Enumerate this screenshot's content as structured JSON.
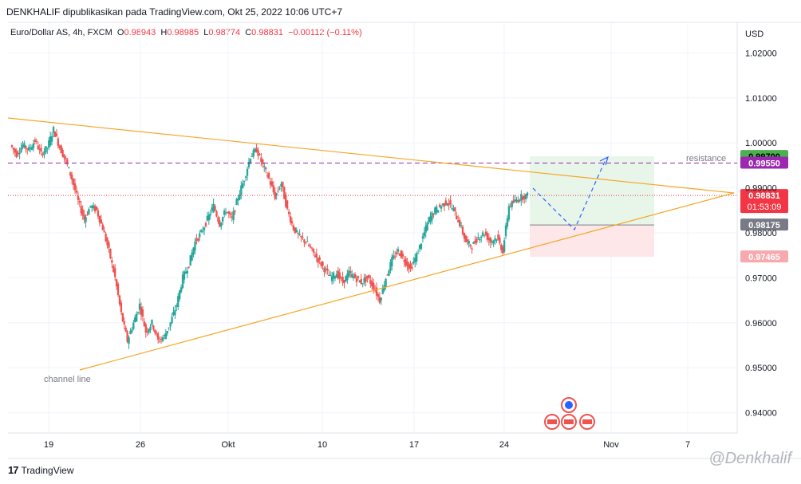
{
  "header": {
    "publisher_line": "DENKHALIF dipublikasikan pada TradingView.com, Okt 25, 2022 10:06 UTC+7"
  },
  "legend": {
    "symbol": "Euro/Dollar AS, 4h, FXCM",
    "o_key": "O",
    "o_val": "0.98943",
    "h_key": "H",
    "h_val": "0.98985",
    "l_key": "L",
    "l_val": "0.98774",
    "c_key": "C",
    "c_val": "0.98831",
    "change": "−0.00112 (−0.11%)"
  },
  "footer": {
    "brand": "TradingView",
    "logo_text": "17"
  },
  "watermark": "@Denkhalif",
  "colors": {
    "up": "#26a69a",
    "down": "#ef5350",
    "trend": "#f5a623",
    "resistance": "#9c27b0",
    "current": "#f23645",
    "entry": "#787b86",
    "target_zone": "#e8f5e9",
    "stop_zone": "#fde7e9",
    "target_badge": "#4caf50",
    "stop_badge": "#f7a9ad",
    "arrow": "#2962ff"
  },
  "chart_data": {
    "type": "candlestick",
    "currency": "USD",
    "yticks": [
      "1.02000",
      "1.01000",
      "1.00000",
      "0.99000",
      "0.98000",
      "0.97000",
      "0.96000",
      "0.95000",
      "0.94000"
    ],
    "ytick_values": [
      1.02,
      1.01,
      1.0,
      0.99,
      0.98,
      0.97,
      0.96,
      0.95,
      0.94
    ],
    "xticks": [
      "19",
      "26",
      "Okt",
      "10",
      "17",
      "24",
      "Nov",
      "7"
    ],
    "ylim": [
      0.9355,
      1.0268
    ],
    "price_labels": {
      "target": "0.99700",
      "resistance": "0.99550",
      "current": "0.98831",
      "countdown": "01:53:09",
      "entry": "0.98175",
      "stop": "0.97465"
    },
    "price_values": {
      "target": 0.997,
      "resistance": 0.9955,
      "current": 0.98831,
      "entry": 0.98175,
      "stop": 0.97465
    },
    "annotations": {
      "resistance": "resistance",
      "channel": "channel line"
    },
    "close_path": [
      0.9995,
      0.9975,
      0.9995,
      0.9985,
      1.0005,
      0.9975,
      0.999,
      1.003,
      0.999,
      0.996,
      0.992,
      0.987,
      0.983,
      0.986,
      0.985,
      0.981,
      0.976,
      0.97,
      0.962,
      0.956,
      0.96,
      0.964,
      0.958,
      0.96,
      0.956,
      0.957,
      0.96,
      0.964,
      0.97,
      0.973,
      0.978,
      0.98,
      0.983,
      0.986,
      0.982,
      0.985,
      0.983,
      0.988,
      0.992,
      0.997,
      0.9985,
      0.995,
      0.992,
      0.988,
      0.991,
      0.985,
      0.981,
      0.979,
      0.978,
      0.976,
      0.974,
      0.972,
      0.97,
      0.971,
      0.969,
      0.971,
      0.97,
      0.969,
      0.97,
      0.968,
      0.965,
      0.97,
      0.974,
      0.976,
      0.974,
      0.972,
      0.975,
      0.979,
      0.983,
      0.985,
      0.986,
      0.987,
      0.985,
      0.982,
      0.978,
      0.977,
      0.979,
      0.98,
      0.978,
      0.979,
      0.976,
      0.986,
      0.987,
      0.988,
      0.9883
    ]
  }
}
